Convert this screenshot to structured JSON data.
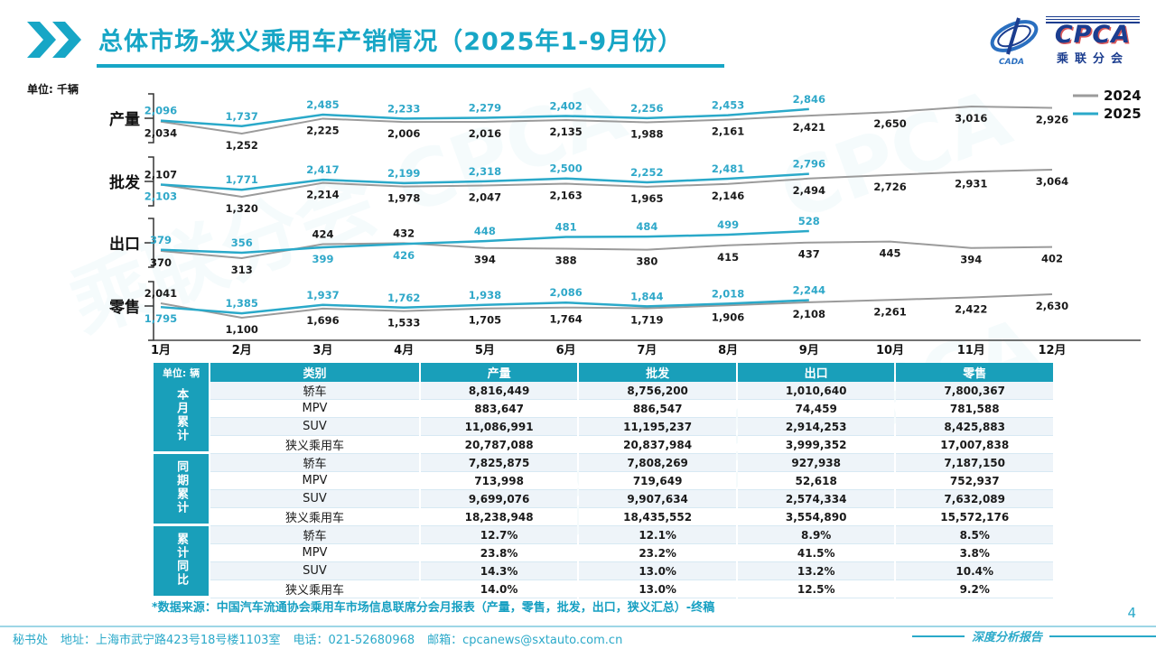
{
  "colors": {
    "accent": "#17a6c6",
    "line_2024": "#9b9b9b",
    "line_2025": "#2aa9c9",
    "label_2024": "#1a1a1a",
    "label_2025": "#2fa8c9",
    "table_header_bg": "#199fba"
  },
  "header": {
    "title": "总体市场-狭义乘用车产销情况（2025年1-9月份）",
    "logo": {
      "cpca": "CPCA",
      "cada": "CADA",
      "sub": "乘联分会"
    }
  },
  "unit_label": "单位: 千辆",
  "legend": [
    {
      "label": "2024",
      "color": "#9b9b9b"
    },
    {
      "label": "2025",
      "color": "#2aa9c9"
    }
  ],
  "months": [
    "1月",
    "2月",
    "3月",
    "4月",
    "5月",
    "6月",
    "7月",
    "8月",
    "9月",
    "10月",
    "11月",
    "12月"
  ],
  "chart_data": [
    {
      "type": "line",
      "label": "产量",
      "series": [
        {
          "name": "2024",
          "values": [
            2034,
            1252,
            2225,
            2006,
            2016,
            2135,
            1988,
            2161,
            2421,
            2650,
            3016,
            2926
          ]
        },
        {
          "name": "2025",
          "values": [
            2096,
            1737,
            2485,
            2233,
            2279,
            2402,
            2256,
            2453,
            2846
          ]
        }
      ]
    },
    {
      "type": "line",
      "label": "批发",
      "series": [
        {
          "name": "2024",
          "values": [
            2107,
            1320,
            2214,
            1978,
            2047,
            2163,
            1965,
            2146,
            2494,
            2726,
            2931,
            3064
          ]
        },
        {
          "name": "2025",
          "values": [
            2103,
            1771,
            2417,
            2199,
            2318,
            2500,
            2252,
            2481,
            2796
          ]
        }
      ]
    },
    {
      "type": "line",
      "label": "出口",
      "series": [
        {
          "name": "2024",
          "values": [
            370,
            313,
            424,
            432,
            394,
            388,
            380,
            415,
            437,
            445,
            394,
            402
          ]
        },
        {
          "name": "2025",
          "values": [
            379,
            356,
            399,
            426,
            448,
            481,
            484,
            499,
            528
          ]
        }
      ]
    },
    {
      "type": "line",
      "label": "零售",
      "series": [
        {
          "name": "2024",
          "values": [
            2041,
            1100,
            1696,
            1533,
            1705,
            1764,
            1719,
            1906,
            2108,
            2261,
            2422,
            2630
          ]
        },
        {
          "name": "2025",
          "values": [
            1795,
            1385,
            1937,
            1762,
            1938,
            2086,
            1844,
            2018,
            2244
          ]
        }
      ]
    }
  ],
  "table": {
    "unit": "单位: 辆",
    "columns": [
      "类别",
      "产量",
      "批发",
      "出口",
      "零售"
    ],
    "groups": [
      {
        "label": "本月累计",
        "rows": [
          {
            "cat": "轿车",
            "values": [
              "8,816,449",
              "8,756,200",
              "1,010,640",
              "7,800,367"
            ]
          },
          {
            "cat": "MPV",
            "values": [
              "883,647",
              "886,547",
              "74,459",
              "781,588"
            ]
          },
          {
            "cat": "SUV",
            "values": [
              "11,086,991",
              "11,195,237",
              "2,914,253",
              "8,425,883"
            ]
          },
          {
            "cat": "狭义乘用车",
            "values": [
              "20,787,088",
              "20,837,984",
              "3,999,352",
              "17,007,838"
            ]
          }
        ]
      },
      {
        "label": "同期累计",
        "rows": [
          {
            "cat": "轿车",
            "values": [
              "7,825,875",
              "7,808,269",
              "927,938",
              "7,187,150"
            ]
          },
          {
            "cat": "MPV",
            "values": [
              "713,998",
              "719,649",
              "52,618",
              "752,937"
            ]
          },
          {
            "cat": "SUV",
            "values": [
              "9,699,076",
              "9,907,634",
              "2,574,334",
              "7,632,089"
            ]
          },
          {
            "cat": "狭义乘用车",
            "values": [
              "18,238,948",
              "18,435,552",
              "3,554,890",
              "15,572,176"
            ]
          }
        ]
      },
      {
        "label": "累计同比",
        "rows": [
          {
            "cat": "轿车",
            "values": [
              "12.7%",
              "12.1%",
              "8.9%",
              "8.5%"
            ]
          },
          {
            "cat": "MPV",
            "values": [
              "23.8%",
              "23.2%",
              "41.5%",
              "3.8%"
            ]
          },
          {
            "cat": "SUV",
            "values": [
              "14.3%",
              "13.0%",
              "13.2%",
              "10.4%"
            ]
          },
          {
            "cat": "狭义乘用车",
            "values": [
              "14.0%",
              "13.0%",
              "12.5%",
              "9.2%"
            ]
          }
        ]
      }
    ]
  },
  "footnote": "*数据来源：中国汽车流通协会乘用车市场信息联席分会月报表（产量，零售，批发，出口，狭义汇总）-终稿",
  "footer": {
    "segments": [
      "秘书处",
      "地址：上海市武宁路423号18号楼1103室",
      "电话：021-52680968",
      "邮箱：cpcanews@sxtauto.com.cn"
    ],
    "report_label": "深度分析报告"
  },
  "page_number": "4"
}
